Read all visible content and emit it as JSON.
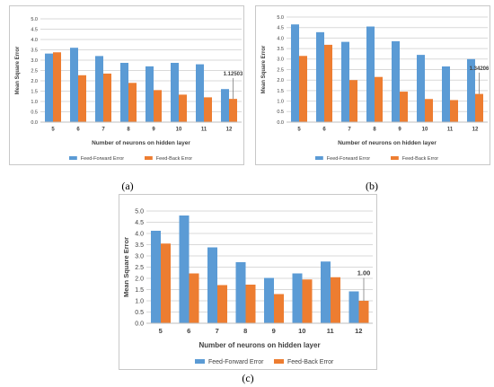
{
  "chart_data": [
    {
      "type": "bar",
      "caption": "(a)",
      "categories": [
        "5",
        "6",
        "7",
        "8",
        "9",
        "10",
        "11",
        "12"
      ],
      "series": [
        {
          "name": "Feed-Forward Error",
          "values": [
            3.32,
            3.6,
            3.2,
            2.87,
            2.7,
            2.87,
            2.8,
            1.6
          ]
        },
        {
          "name": "Feed-Back Error",
          "values": [
            3.38,
            2.27,
            2.35,
            1.9,
            1.55,
            1.33,
            1.2,
            1.12503
          ]
        }
      ],
      "xlabel": "Number of neurons on hidden layer",
      "ylabel": "Mean Square Error",
      "ylim": [
        0,
        5
      ],
      "yticks": [
        "0.0",
        "0.5",
        "1.0",
        "1.5",
        "2.0",
        "2.5",
        "3.0",
        "3.5",
        "4.0",
        "4.5",
        "5.0"
      ],
      "annotation": "1.12503",
      "grid": true,
      "legend": "bottom"
    },
    {
      "type": "bar",
      "caption": "(b)",
      "categories": [
        "5",
        "6",
        "7",
        "8",
        "9",
        "10",
        "11",
        "12"
      ],
      "series": [
        {
          "name": "Feed-Forward Error",
          "values": [
            4.65,
            4.28,
            3.82,
            4.55,
            3.85,
            3.2,
            2.65,
            3.0
          ]
        },
        {
          "name": "Feed-Back Error",
          "values": [
            3.15,
            3.68,
            2.0,
            2.15,
            1.45,
            1.1,
            1.05,
            1.34206
          ]
        }
      ],
      "xlabel": "Number of neurons on hidden layer",
      "ylabel": "Mean Square Error",
      "ylim": [
        0,
        5
      ],
      "yticks": [
        "0.0",
        "0.5",
        "1.0",
        "1.5",
        "2.0",
        "2.5",
        "3.0",
        "3.5",
        "4.0",
        "4.5",
        "5.0"
      ],
      "annotation": "1.34206",
      "grid": true,
      "legend": "bottom"
    },
    {
      "type": "bar",
      "caption": "(c)",
      "categories": [
        "5",
        "6",
        "7",
        "8",
        "9",
        "10",
        "11",
        "12"
      ],
      "series": [
        {
          "name": "Feed-Forward Error",
          "values": [
            4.12,
            4.8,
            3.38,
            2.72,
            2.02,
            2.22,
            2.75,
            1.42
          ]
        },
        {
          "name": "Feed-Back Error",
          "values": [
            3.55,
            2.22,
            1.7,
            1.72,
            1.3,
            1.95,
            2.05,
            1.0
          ]
        }
      ],
      "xlabel": "Number of neurons on hidden layer",
      "ylabel": "Mean Square Error",
      "ylim": [
        0,
        5
      ],
      "yticks": [
        "0.0",
        "0.5",
        "1.0",
        "1.5",
        "2.0",
        "2.5",
        "3.0",
        "3.5",
        "4.0",
        "4.5",
        "5.0"
      ],
      "annotation": "1.00",
      "grid": true,
      "legend": "bottom"
    }
  ],
  "colors": {
    "feed_forward": "#5b9bd5",
    "feed_back": "#ed7d31",
    "grid": "#d9d9d9",
    "axis_text": "#404040"
  }
}
